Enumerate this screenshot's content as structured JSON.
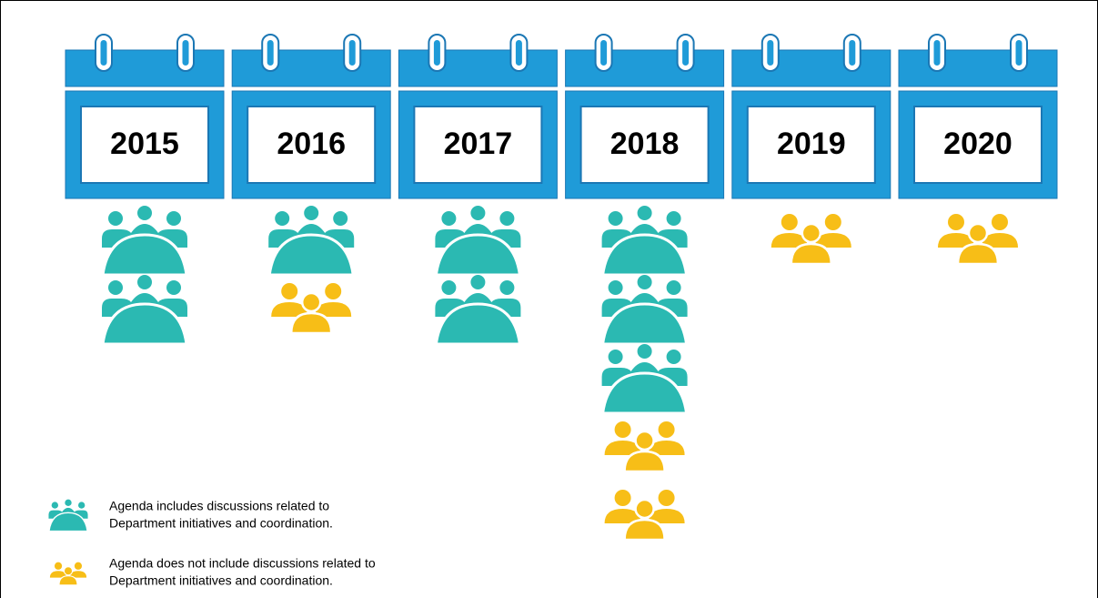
{
  "years": [
    {
      "year": "2015",
      "included": 2,
      "not_included": 0
    },
    {
      "year": "2016",
      "included": 1,
      "not_included": 1
    },
    {
      "year": "2017",
      "included": 2,
      "not_included": 0
    },
    {
      "year": "2018",
      "included": 3,
      "not_included": 2
    },
    {
      "year": "2019",
      "included": 0,
      "not_included": 1
    },
    {
      "year": "2020",
      "included": 0,
      "not_included": 1
    }
  ],
  "legend": {
    "included": [
      "Agenda includes discussions related to",
      "Department initiatives and coordination."
    ],
    "not_included": [
      "Agenda does not include discussions related to",
      "Department initiatives and coordination."
    ]
  }
}
